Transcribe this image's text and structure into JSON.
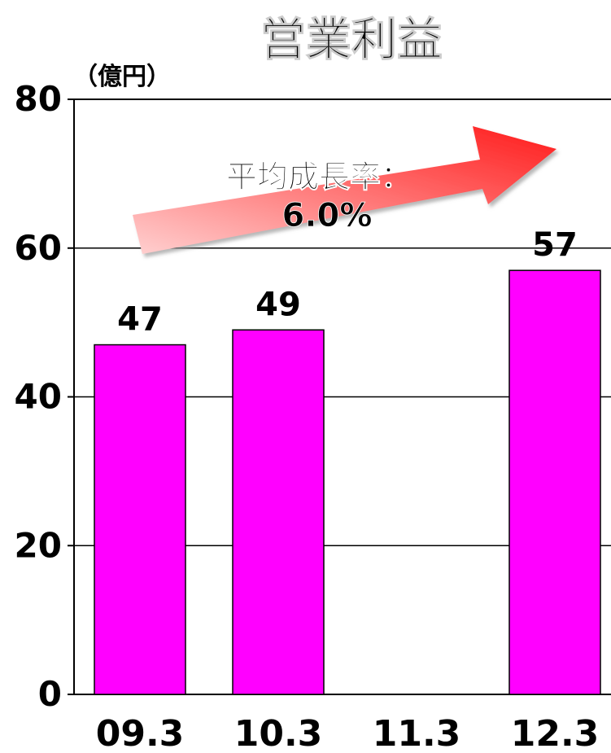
{
  "chart_data": {
    "type": "bar",
    "title": "営業利益",
    "unit_label": "（億円）",
    "categories": [
      "09.3",
      "10.3",
      "11.3",
      "12.3"
    ],
    "values": [
      47,
      49,
      null,
      57
    ],
    "data_labels": [
      "47",
      "49",
      "",
      "57"
    ],
    "ylim": [
      0,
      80
    ],
    "yticks": [
      0,
      20,
      40,
      60,
      80
    ],
    "ytick_labels": [
      "0",
      "20",
      "40",
      "60",
      "80"
    ],
    "grid": true,
    "bar_color": "#FF00FF",
    "annotation": {
      "line1": "平均成長率：",
      "line2": "6.0%",
      "arrow_colors": [
        "#FF1A1A",
        "#FFD0D0"
      ]
    }
  }
}
